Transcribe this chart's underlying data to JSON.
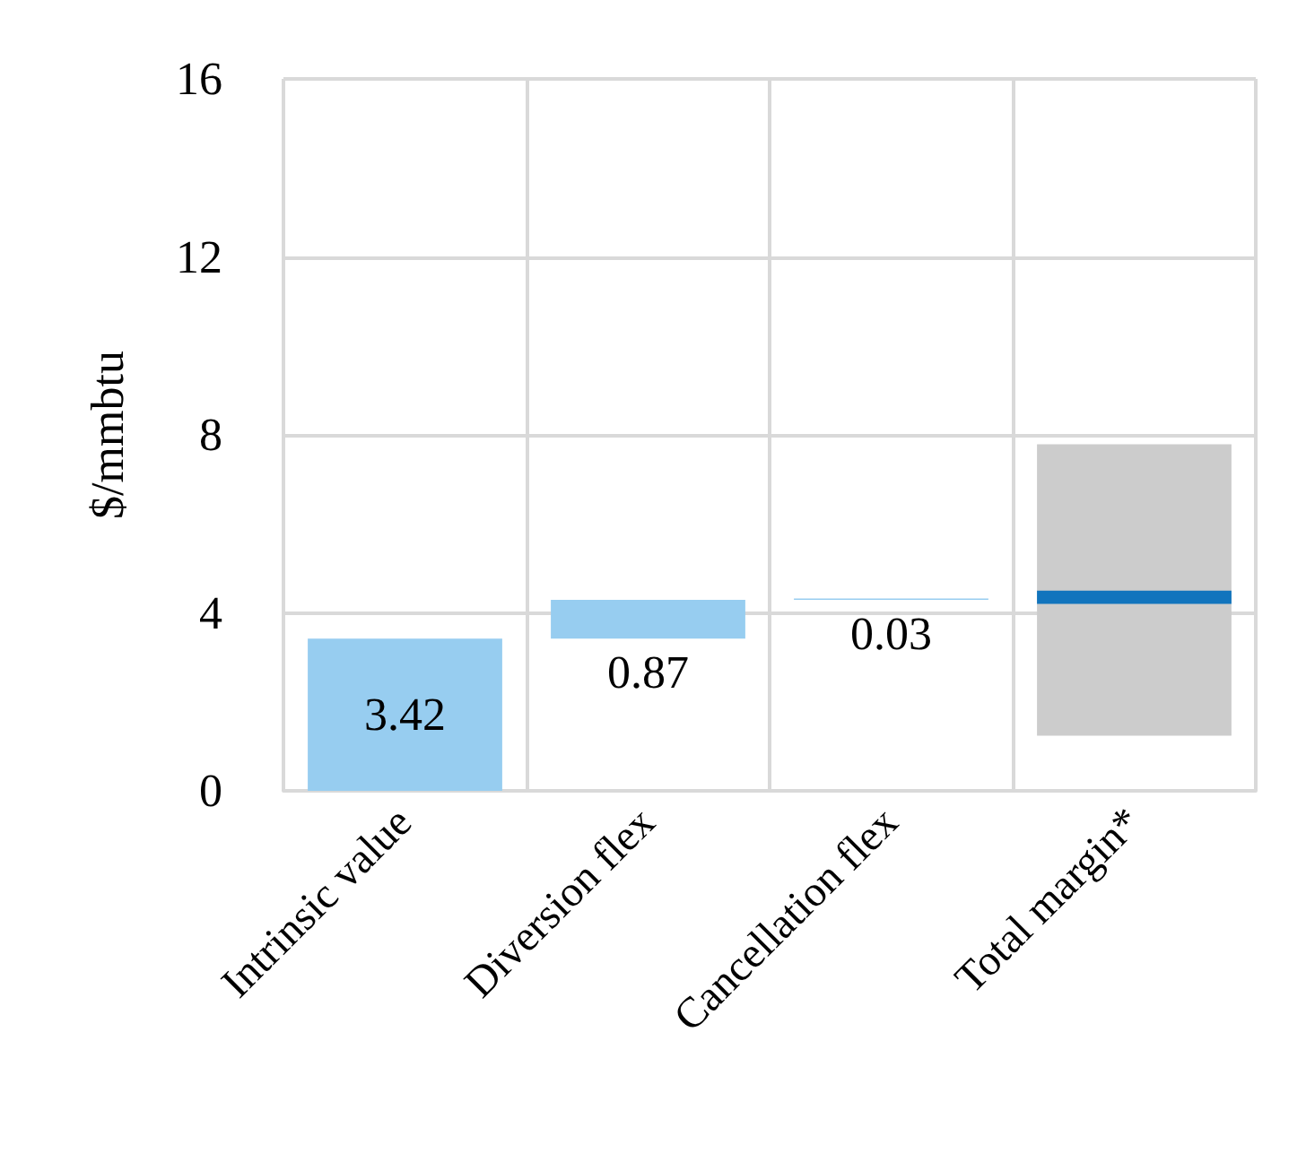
{
  "chart_data": {
    "type": "bar",
    "ylabel": "$/mmbtu",
    "categories": [
      "Intrinsic value",
      "Diversion flex",
      "Cancellation flex",
      "Total margin*"
    ],
    "series": [
      {
        "color": "#97cdf0",
        "values": [
          3.42,
          0.87,
          0.03,
          null
        ],
        "base": [
          0,
          3.42,
          4.29,
          null
        ],
        "value_labels": [
          "3.42",
          "0.87",
          "0.03",
          null
        ]
      },
      {
        "color": "#cccccc",
        "values": [
          null,
          null,
          null,
          6.55
        ],
        "base": [
          null,
          null,
          null,
          1.24
        ]
      },
      {
        "color": "#1174bd",
        "values": [
          null,
          null,
          null,
          0.3
        ],
        "base": [
          null,
          null,
          null,
          4.2
        ]
      }
    ],
    "ylim": [
      0,
      16
    ],
    "yticks": [
      0,
      4,
      8,
      12,
      16
    ],
    "grid": true
  }
}
